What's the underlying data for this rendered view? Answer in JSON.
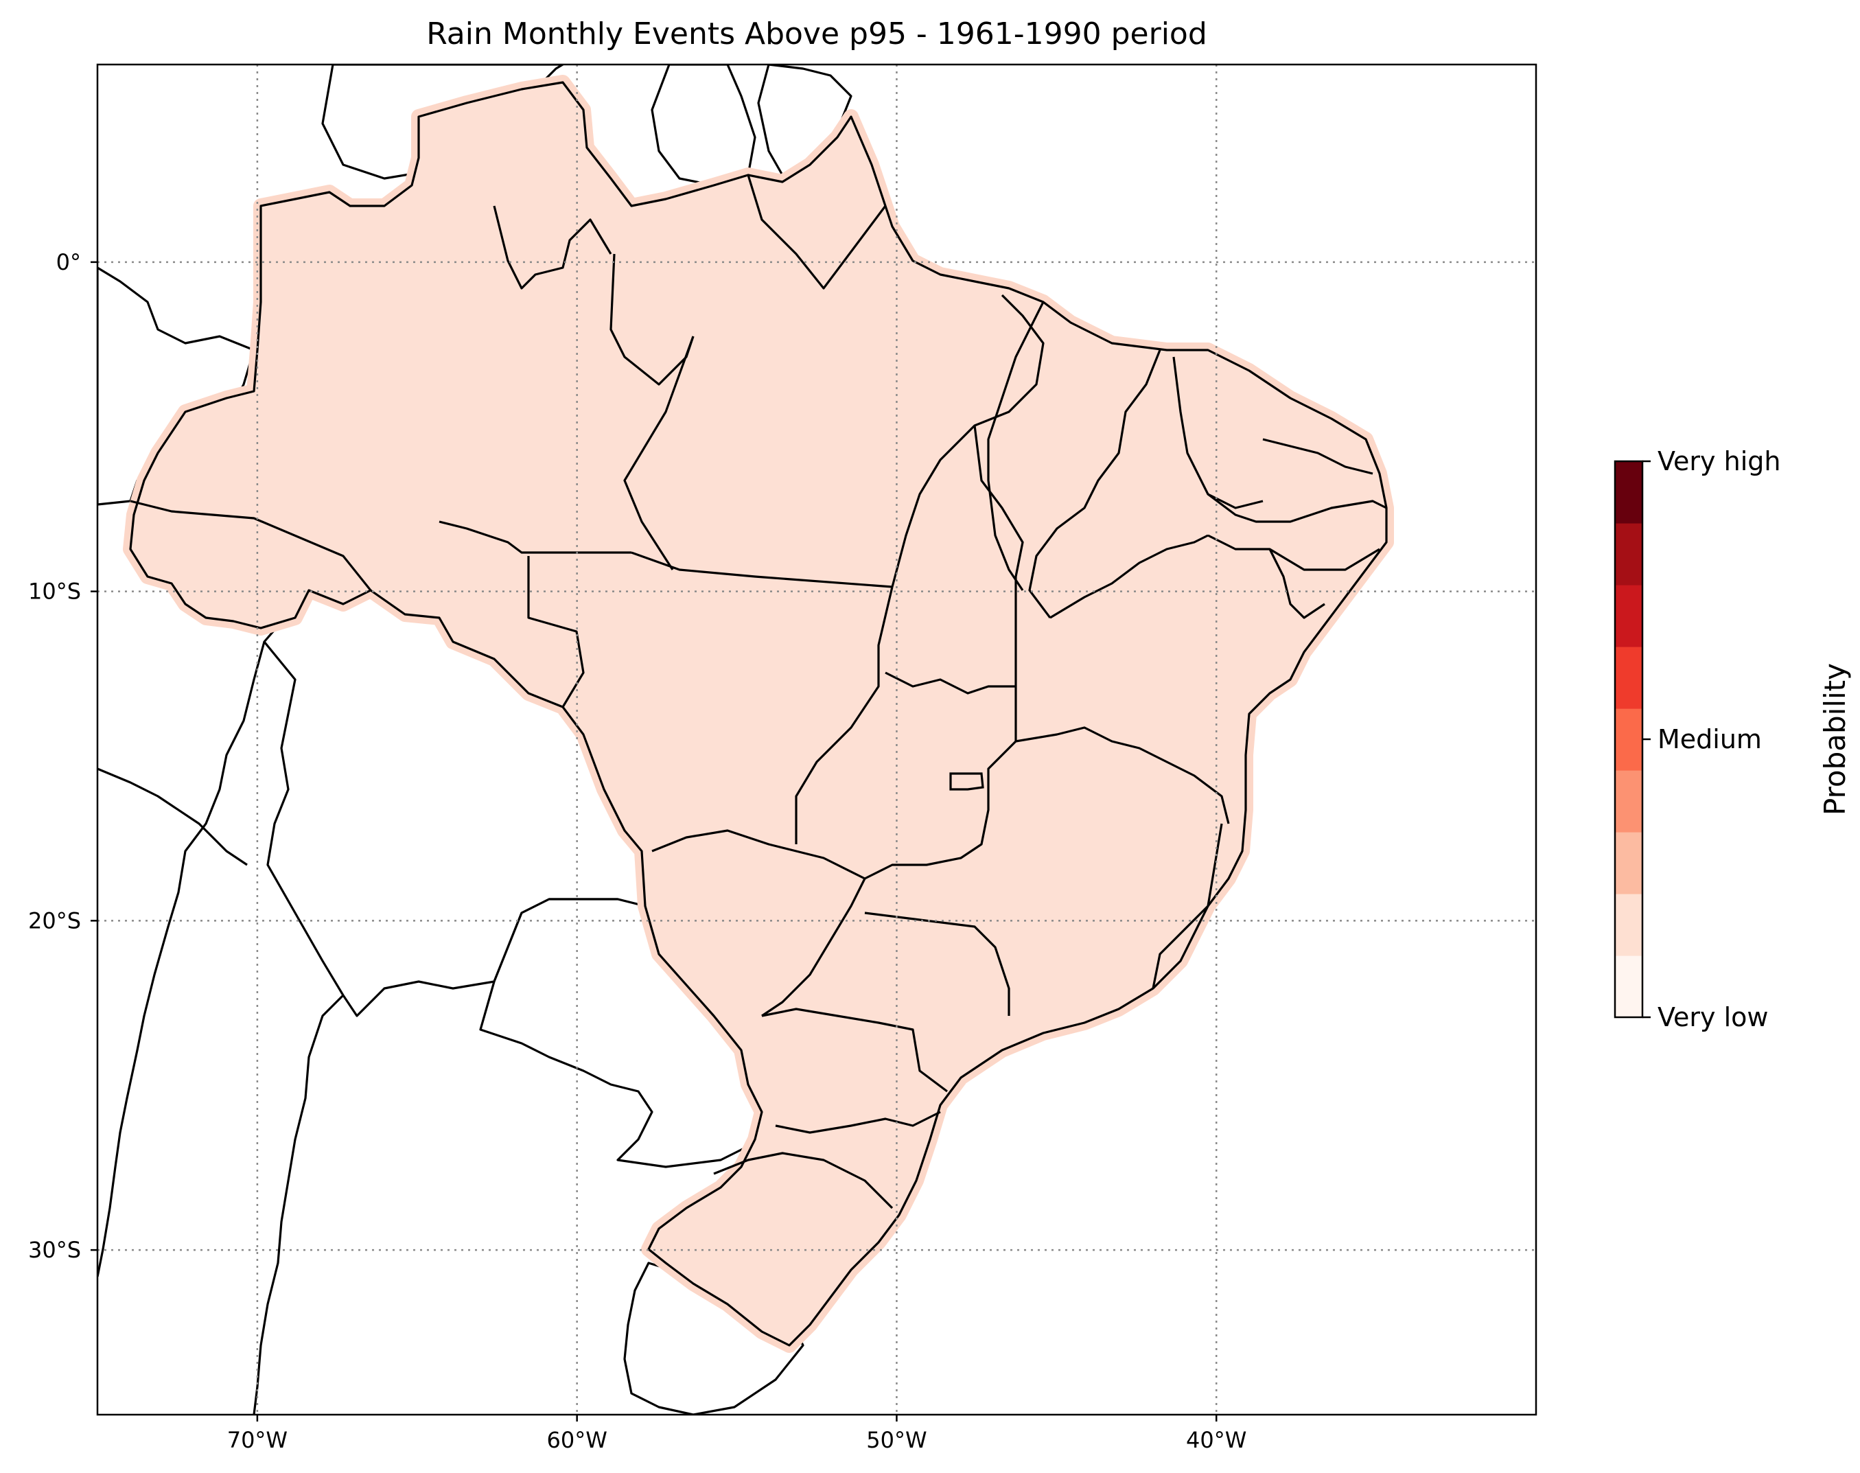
{
  "title": "Rain Monthly Events Above p95 - 1961-1990 period",
  "map": {
    "extent": {
      "lon_min": -75,
      "lon_max": -30,
      "lat_min": -35,
      "lat_max": 6
    },
    "gridlines": true,
    "lon_ticks": [
      {
        "value": -70,
        "label": "70°W"
      },
      {
        "value": -60,
        "label": "60°W"
      },
      {
        "value": -50,
        "label": "50°W"
      },
      {
        "value": -40,
        "label": "40°W"
      }
    ],
    "lat_ticks": [
      {
        "value": 0,
        "label": "0°"
      },
      {
        "value": -10,
        "label": "10°S"
      },
      {
        "value": -20,
        "label": "20°S"
      },
      {
        "value": -30,
        "label": "30°S"
      }
    ],
    "region_fill": "#fde0d4",
    "region_value": "Very low"
  },
  "colorbar": {
    "label": "Probability",
    "levels": 9,
    "colors": [
      "#fff5f0",
      "#fee0d2",
      "#fcbba1",
      "#fc9272",
      "#fb6a4a",
      "#ef3b2c",
      "#cb181d",
      "#a50f15",
      "#67000d"
    ],
    "ticks": [
      {
        "fraction": 0,
        "label": "Very low"
      },
      {
        "fraction": 0.5,
        "label": "Medium"
      },
      {
        "fraction": 1,
        "label": "Very high"
      }
    ]
  }
}
